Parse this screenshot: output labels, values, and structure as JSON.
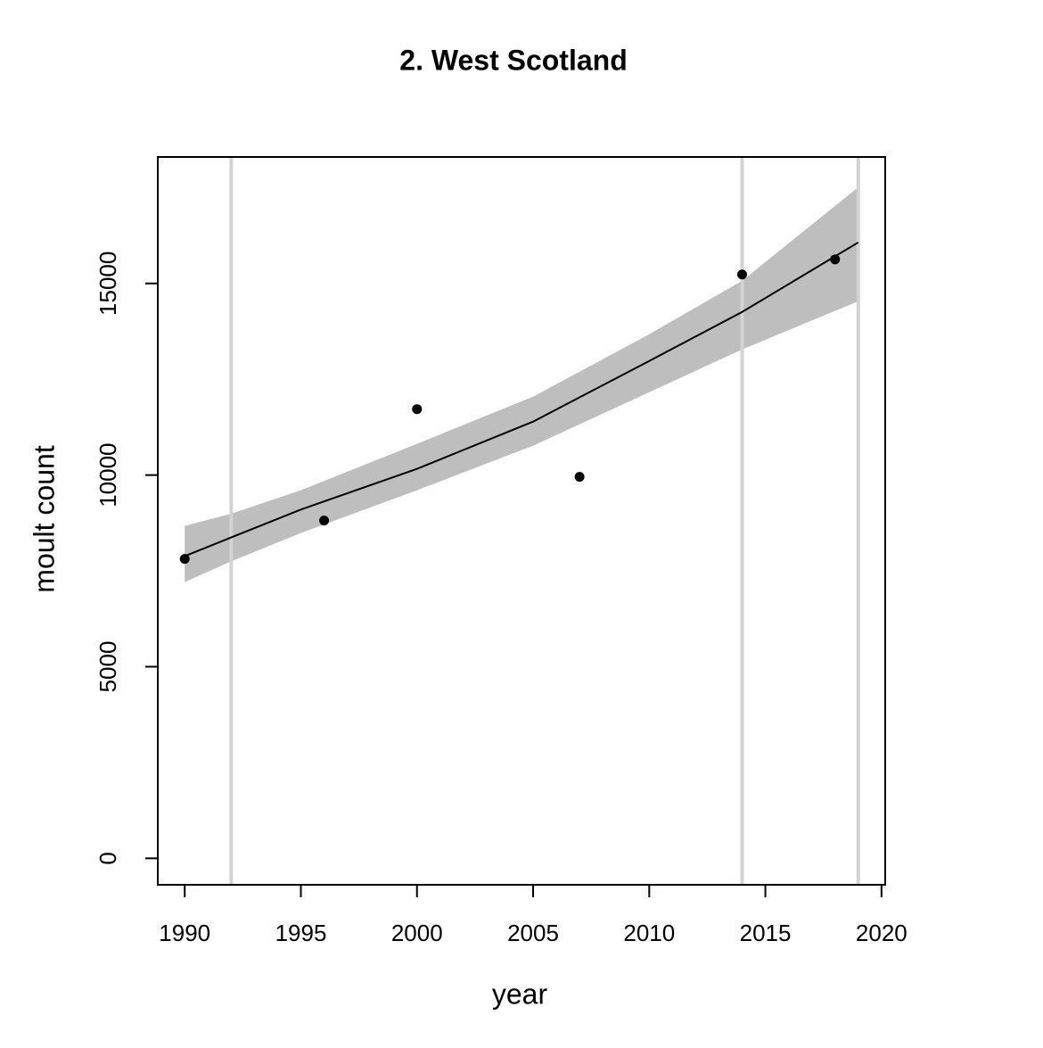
{
  "chart_data": {
    "type": "scatter",
    "title": "2. West Scotland",
    "xlabel": "year",
    "ylabel": "moult count",
    "x": [
      1990,
      1996,
      2000,
      2007,
      2014,
      2018
    ],
    "values": [
      7814,
      8814,
      11721,
      9953,
      15233,
      15628
    ],
    "color": "#000000",
    "fit_x": [
      1990,
      1992,
      1995,
      2000,
      2005,
      2010,
      2014,
      2019
    ],
    "fit_values": [
      7884,
      8372,
      9100,
      10163,
      11395,
      12977,
      14256,
      16070
    ],
    "band_lower": [
      7209,
      7750,
      8488,
      9605,
      10767,
      12163,
      13279,
      14535
    ],
    "band_upper": [
      8674,
      8990,
      9605,
      10814,
      12047,
      13674,
      15070,
      17512
    ],
    "band_color": "#bebebe",
    "vlines": [
      1992,
      2014,
      2019
    ],
    "vline_color": "#d3d3d3",
    "xlim": [
      1988.84,
      2020.16
    ],
    "ylim": [
      -690,
      18300
    ],
    "xticks": [
      1990,
      1995,
      2000,
      2005,
      2010,
      2015,
      2020
    ],
    "yticks": [
      0,
      5000,
      10000,
      15000
    ]
  }
}
